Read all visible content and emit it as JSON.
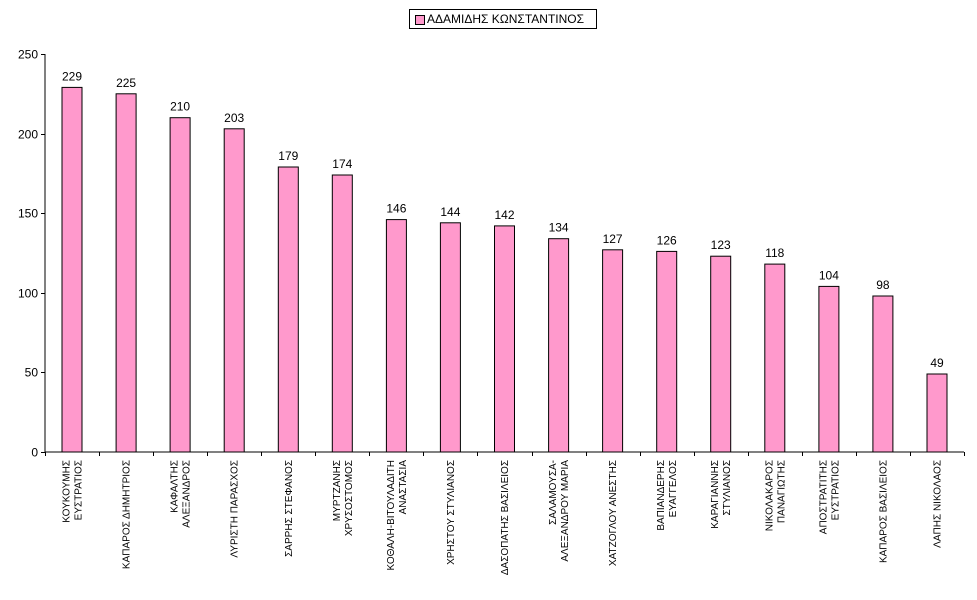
{
  "chart_data": {
    "type": "bar",
    "categories": [
      [
        "ΚΟΥΚΟΥΜΗΣ",
        "ΕΥΣΤΡΑΤΙΟΣ"
      ],
      [
        "ΚΑΠΑΡΟΣ ΔΗΜΗΤΡΙΟΣ"
      ],
      [
        "ΚΑΦΑΛΤΗΣ",
        "ΑΛΕΞΑΝΔΡΟΣ"
      ],
      [
        "ΛΥΡΙΣΤΗ ΠΑΡΑΣΧΟΣ"
      ],
      [
        "ΣΑΡΡΗΣ ΣΤΕΦΑΝΟΣ"
      ],
      [
        "ΜΥΡΤΖΑΝΗΣ",
        "ΧΡΥΣΟΣΤΟΜΟΣ"
      ],
      [
        "ΚΟΘΑΛΗ-ΒΙΤΟΥΛΑΔΙΤΗ",
        "ΑΝΑΣΤΑΣΙΑ"
      ],
      [
        "ΧΡΗΣΤΟΥ ΣΤΥΛΙΑΝΟΣ"
      ],
      [
        "ΔΑΣΟΠΑΤΗΣ ΒΑΣΙΛΕΙΟΣ"
      ],
      [
        "ΣΑΛΑΜΟΥΣΑ-",
        "ΑΛΕΞΑΝΔΡΟΥ ΜΑΡΙΑ"
      ],
      [
        "ΧΑΤΖΟΓΛΟΥ ΑΝΕΣΤΗΣ"
      ],
      [
        "ΒΑΠΙΑΝΔΕΡΗΣ",
        "ΕΥΑΓΓΕΛΟΣ"
      ],
      [
        "ΚΑΡΑΓΙΑΝΝΗΣ",
        "ΣΤΥΛΙΑΝΟΣ"
      ],
      [
        "ΝΙΚΟΛΑΚΑΡΟΣ",
        "ΠΑΝΑΓΙΩΤΗΣ"
      ],
      [
        "ΑΠΟΣΤΡΑΤΙΤΗΣ",
        "ΕΥΣΤΡΑΤΙΟΣ"
      ],
      [
        "ΚΑΠΑΡΟΣ ΒΑΣΙΛΕΙΟΣ"
      ],
      [
        "ΛΑΠΗΣ ΝΙΚΟΛΑΟΣ"
      ]
    ],
    "series": [
      {
        "name": "ΑΔΑΜΙΔΗΣ ΚΩΝΣΤΑΝΤΙΝΟΣ",
        "values": [
          229,
          225,
          210,
          203,
          179,
          174,
          146,
          144,
          142,
          134,
          127,
          126,
          123,
          118,
          104,
          98,
          49
        ]
      }
    ],
    "ylim": [
      0,
      250
    ],
    "yticks": [
      0,
      50,
      100,
      150,
      200,
      250
    ],
    "grid": false,
    "legend_position": "top-center",
    "bar_color": "#ff99cc",
    "bar_border_color": "#000000"
  }
}
